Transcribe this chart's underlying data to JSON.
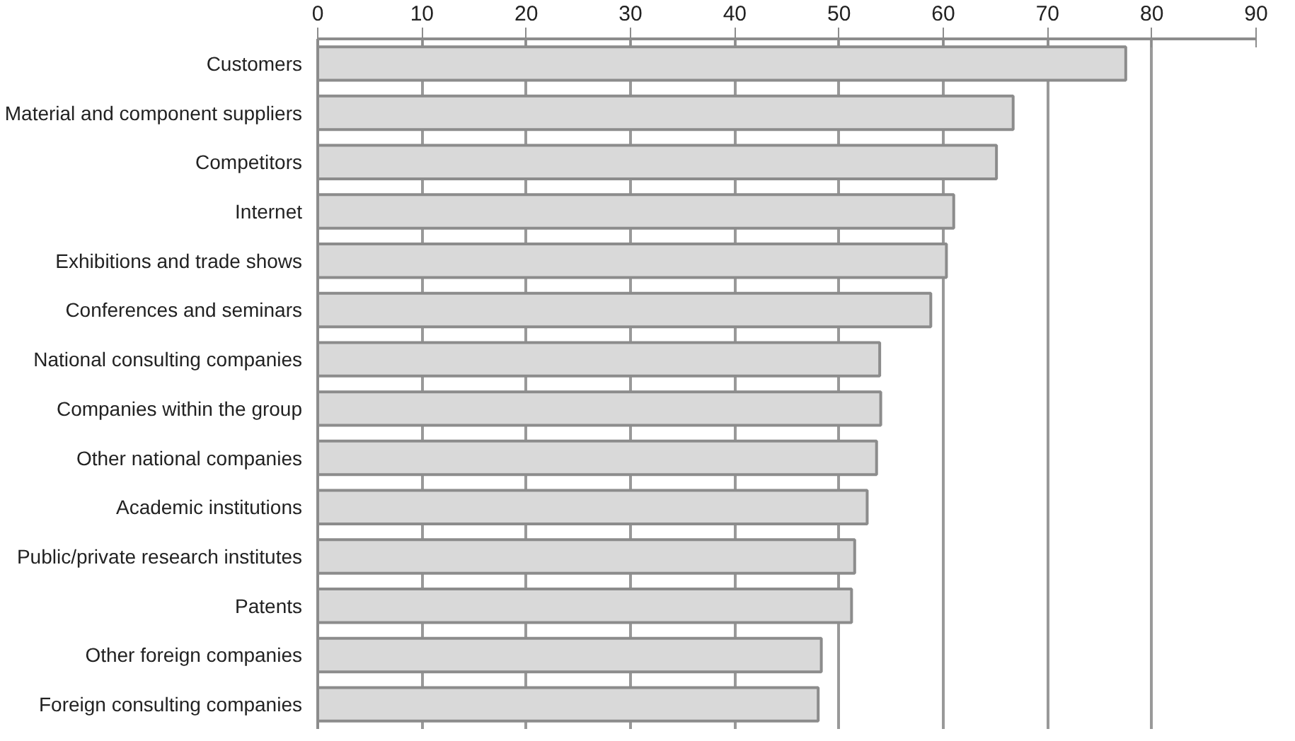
{
  "chart_data": {
    "type": "bar",
    "orientation": "horizontal",
    "categories": [
      "Customers",
      "Material and component suppliers",
      "Competitors",
      "Internet",
      "Exhibitions and trade shows",
      "Conferences and seminars",
      "National consulting companies",
      "Companies within the group",
      "Other national companies",
      "Academic institutions",
      "Public/private research institutes",
      "Patents",
      "Other foreign companies",
      "Foreign consulting companies"
    ],
    "values": [
      77.5,
      66.7,
      65.1,
      61.0,
      60.3,
      58.8,
      53.9,
      54.0,
      53.6,
      52.7,
      51.5,
      51.2,
      48.3,
      48.0
    ],
    "color": "#d9d9d9",
    "xlim": [
      0,
      90
    ],
    "xticks": [
      0,
      10,
      20,
      30,
      40,
      50,
      60,
      70,
      80,
      90
    ],
    "grid": "x"
  }
}
